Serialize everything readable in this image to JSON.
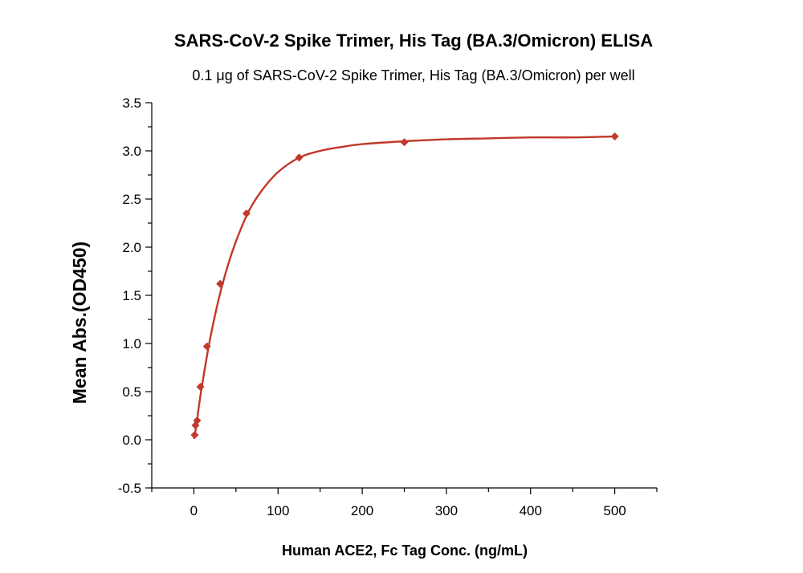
{
  "chart_data": {
    "type": "scatter",
    "title": "SARS-CoV-2 Spike Trimer, His Tag (BA.3/Omicron) ELISA",
    "subtitle": "0.1 μg of SARS-CoV-2 Spike Trimer, His Tag (BA.3/Omicron) per well",
    "xlabel": "Human ACE2, Fc Tag Conc. (ng/mL)",
    "ylabel": "Mean Abs.(OD450)",
    "xlim": [
      -50,
      550
    ],
    "ylim": [
      -0.5,
      3.5
    ],
    "xticks": [
      0,
      100,
      200,
      300,
      400,
      500
    ],
    "xtick_labels": [
      "0",
      "100",
      "200",
      "300",
      "400",
      "500"
    ],
    "yticks": [
      -0.5,
      0.0,
      0.5,
      1.0,
      1.5,
      2.0,
      2.5,
      3.0,
      3.5
    ],
    "ytick_labels": [
      "-0.5",
      "0.0",
      "0.5",
      "1.0",
      "1.5",
      "2.0",
      "2.5",
      "3.0",
      "3.5"
    ],
    "grid": false,
    "color": "#c0392b",
    "series": [
      {
        "marker": "diamond",
        "x": [
          0.98,
          1.95,
          3.9,
          7.8,
          15.6,
          31.25,
          62.5,
          125,
          250,
          500
        ],
        "y": [
          0.05,
          0.15,
          0.2,
          0.55,
          0.97,
          1.62,
          2.35,
          2.93,
          3.09,
          3.15
        ]
      }
    ],
    "fit_curve": {
      "x": [
        0,
        3,
        6,
        10,
        15,
        20,
        30,
        40,
        50,
        65,
        80,
        100,
        125,
        150,
        175,
        200,
        250,
        300,
        350,
        400,
        450,
        500
      ],
      "y": [
        0.01,
        0.15,
        0.35,
        0.58,
        0.84,
        1.08,
        1.48,
        1.8,
        2.06,
        2.37,
        2.58,
        2.78,
        2.93,
        3.0,
        3.04,
        3.07,
        3.1,
        3.12,
        3.13,
        3.14,
        3.14,
        3.15
      ]
    }
  }
}
